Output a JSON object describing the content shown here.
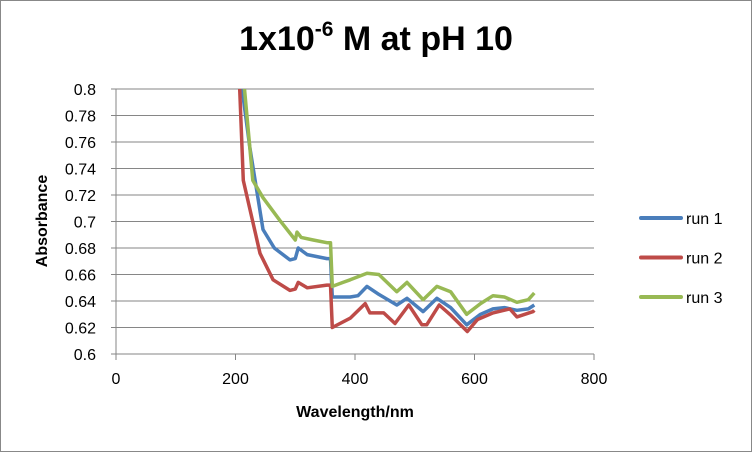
{
  "chart_data": {
    "type": "line",
    "title": "1x10-6 M at pH 10",
    "title_parts": {
      "base": "1x10",
      "sup": "-6",
      "rest": " M at pH 10"
    },
    "xlabel": "Wavelength/nm",
    "ylabel": "Absorbance",
    "xlim": [
      0,
      800
    ],
    "ylim": [
      0.6,
      0.8
    ],
    "xticks": [
      0,
      200,
      400,
      600,
      800
    ],
    "yticks": [
      0.6,
      0.62,
      0.64,
      0.66,
      0.68,
      0.7,
      0.72,
      0.74,
      0.76,
      0.78,
      0.8
    ],
    "xtick_labels": [
      "0",
      "200",
      "400",
      "600",
      "800"
    ],
    "ytick_labels": [
      "0.6",
      "0.62",
      "0.64",
      "0.66",
      "0.68",
      "0.7",
      "0.72",
      "0.74",
      "0.76",
      "0.78",
      "0.8"
    ],
    "grid": "horizontal",
    "legend": "right",
    "series": [
      {
        "name": "run 1",
        "color": "#4a7ebb",
        "x": [
          205,
          211,
          224,
          246,
          265,
          291,
          300,
          305,
          320,
          353,
          359,
          362,
          392,
          405,
          420,
          440,
          470,
          487,
          514,
          537,
          560,
          587,
          610,
          631,
          650,
          671,
          690,
          700
        ],
        "y": [
          0.86,
          0.8,
          0.756,
          0.694,
          0.68,
          0.671,
          0.672,
          0.68,
          0.675,
          0.672,
          0.672,
          0.643,
          0.643,
          0.644,
          0.651,
          0.645,
          0.637,
          0.642,
          0.632,
          0.642,
          0.635,
          0.622,
          0.63,
          0.634,
          0.635,
          0.633,
          0.634,
          0.637
        ]
      },
      {
        "name": "run 2",
        "color": "#be4b48",
        "x": [
          203,
          207,
          213,
          241,
          263,
          291,
          300,
          305,
          320,
          353,
          359,
          362,
          392,
          417,
          425,
          448,
          467,
          490,
          512,
          520,
          541,
          561,
          588,
          605,
          631,
          659,
          671,
          698,
          700
        ],
        "y": [
          0.86,
          0.8,
          0.731,
          0.676,
          0.656,
          0.648,
          0.649,
          0.654,
          0.65,
          0.652,
          0.652,
          0.62,
          0.627,
          0.638,
          0.631,
          0.631,
          0.623,
          0.637,
          0.622,
          0.622,
          0.637,
          0.629,
          0.617,
          0.626,
          0.631,
          0.634,
          0.628,
          0.632,
          0.633
        ]
      },
      {
        "name": "run 3",
        "color": "#98b954",
        "x": [
          210,
          215,
          229,
          246,
          274,
          300,
          303,
          310,
          330,
          353,
          359,
          362,
          380,
          392,
          420,
          440,
          470,
          487,
          514,
          537,
          560,
          587,
          610,
          631,
          650,
          671,
          690,
          700
        ],
        "y": [
          0.86,
          0.8,
          0.731,
          0.718,
          0.701,
          0.686,
          0.692,
          0.688,
          0.686,
          0.684,
          0.684,
          0.651,
          0.654,
          0.656,
          0.661,
          0.66,
          0.647,
          0.654,
          0.641,
          0.651,
          0.647,
          0.63,
          0.638,
          0.644,
          0.643,
          0.639,
          0.641,
          0.646
        ]
      }
    ]
  }
}
